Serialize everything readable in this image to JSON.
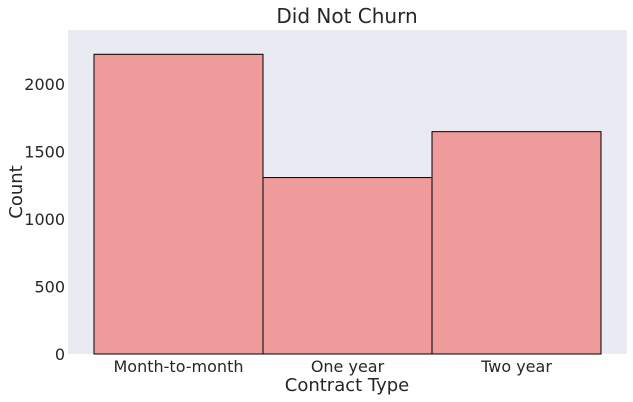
{
  "chart_data": {
    "type": "bar",
    "title": "Did Not Churn",
    "xlabel": "Contract Type",
    "ylabel": "Count",
    "categories": [
      "Month-to-month",
      "One year",
      "Two year"
    ],
    "values": [
      2220,
      1307,
      1647
    ],
    "ylim": [
      0,
      2400
    ],
    "yticks": [
      0,
      500,
      1000,
      1500,
      2000
    ],
    "grid": false,
    "colors": {
      "bar_fill": "#ef9a9b",
      "bar_edge": "#000000",
      "plot_background": "#eaeaf2"
    }
  }
}
